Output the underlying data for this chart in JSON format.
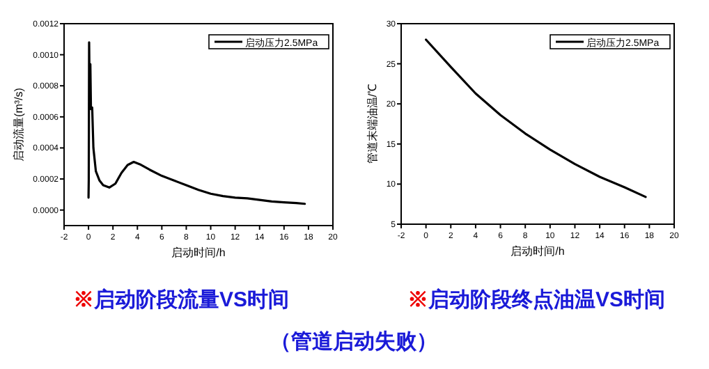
{
  "chart_data": [
    {
      "type": "line",
      "title": "※启动阶段流量VS时间",
      "xlabel": "启动时间/h",
      "ylabel": "启动流量(m³/s)",
      "legend": "top right",
      "xlim": [
        -2,
        20
      ],
      "xticks": [
        -2,
        0,
        2,
        4,
        6,
        8,
        10,
        12,
        14,
        16,
        18,
        20
      ],
      "ylim": [
        -0.0001,
        0.0012
      ],
      "yticks": [
        {
          "value": 0,
          "label": "0.0000"
        },
        {
          "value": 0.0002,
          "label": "0.0002"
        },
        {
          "value": 0.0004,
          "label": "0.0004"
        },
        {
          "value": 0.0006,
          "label": "0.0006"
        },
        {
          "value": 0.0008,
          "label": "0.0008"
        },
        {
          "value": 0.001,
          "label": "0.0010"
        },
        {
          "value": 0.0012,
          "label": "0.0012"
        }
      ],
      "annotations": [
        "（管道启动失败）"
      ],
      "series": [
        {
          "name": "启动压力2.5MPa",
          "color": "#000000",
          "x": [
            0,
            0.02,
            0.05,
            0.1,
            0.15,
            0.2,
            0.3,
            0.4,
            0.6,
            0.9,
            1.2,
            1.7,
            2.2,
            2.7,
            3.2,
            3.7,
            4.2,
            5,
            6,
            7,
            8,
            9,
            10,
            11,
            12,
            13,
            14,
            15,
            16,
            17,
            17.7
          ],
          "values": [
            8e-05,
            0.0002,
            0.00108,
            0.0007,
            0.00094,
            0.00065,
            0.00066,
            0.0004,
            0.00025,
            0.00019,
            0.00016,
            0.000145,
            0.00017,
            0.00024,
            0.00029,
            0.00031,
            0.000295,
            0.00026,
            0.00022,
            0.00019,
            0.00016,
            0.00013,
            0.000105,
            9e-05,
            8e-05,
            7.5e-05,
            6.5e-05,
            5.5e-05,
            5e-05,
            4.5e-05,
            4e-05
          ]
        }
      ]
    },
    {
      "type": "line",
      "title": "※启动阶段终点油温VS时间",
      "xlabel": "启动时间/h",
      "ylabel": "管道末端油温/℃",
      "legend": "top right",
      "xlim": [
        -2,
        20
      ],
      "xticks": [
        -2,
        0,
        2,
        4,
        6,
        8,
        10,
        12,
        14,
        16,
        18,
        20
      ],
      "ylim": [
        5,
        30
      ],
      "yticks": [
        5,
        10,
        15,
        20,
        25,
        30
      ],
      "series": [
        {
          "name": "启动压力2.5MPa",
          "color": "#000000",
          "x": [
            0,
            2,
            4,
            6,
            8,
            10,
            12,
            14,
            16,
            17.7
          ],
          "values": [
            28,
            24.6,
            21.3,
            18.6,
            16.3,
            14.3,
            12.5,
            10.9,
            9.6,
            8.4
          ]
        }
      ]
    }
  ]
}
